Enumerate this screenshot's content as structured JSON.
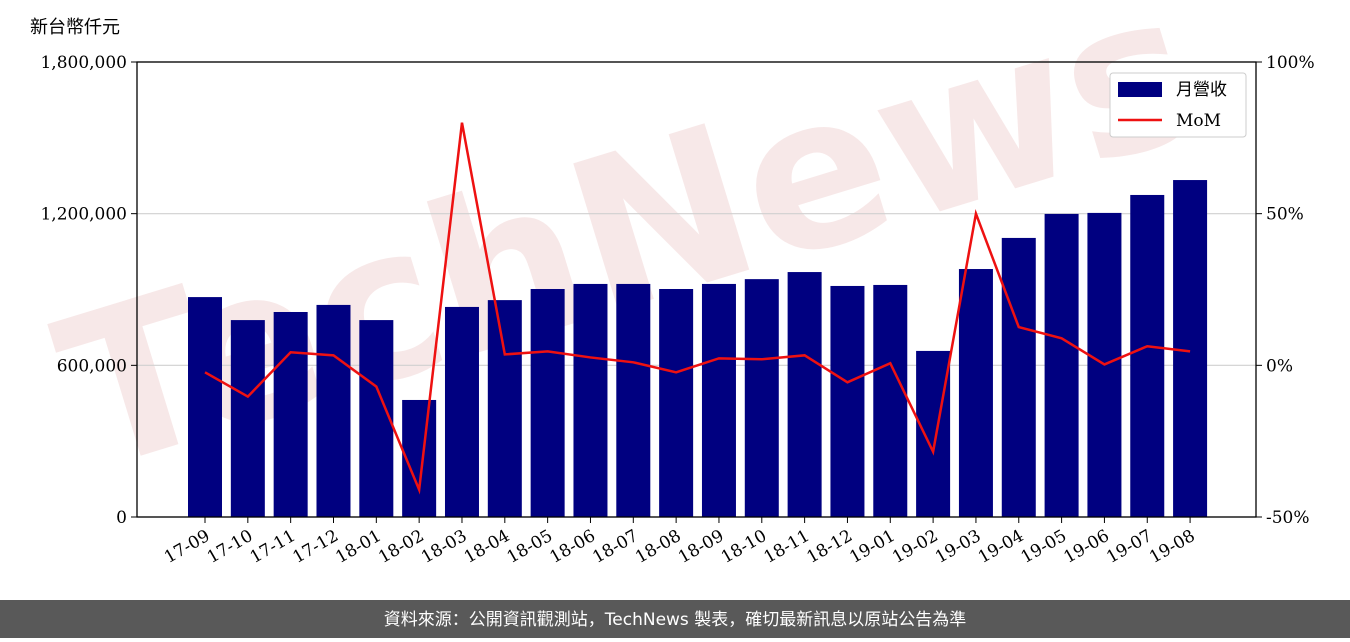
{
  "chart_data": {
    "type": "bar_line",
    "y_label": "新台幣仟元",
    "watermark": "TechNews",
    "source": "資料來源：公開資訊觀測站，TechNews 製表，確切最新訊息以原站公告為準",
    "categories": [
      "17-09",
      "17-10",
      "17-11",
      "17-12",
      "18-01",
      "18-02",
      "18-03",
      "18-04",
      "18-05",
      "18-06",
      "18-07",
      "18-08",
      "18-09",
      "18-10",
      "18-11",
      "18-12",
      "19-01",
      "19-02",
      "19-03",
      "19-04",
      "19-05",
      "19-06",
      "19-07",
      "19-08"
    ],
    "series": [
      {
        "name": "月營收",
        "type": "bar",
        "color": "#000080",
        "values": [
          870000,
          779000,
          811000,
          839000,
          779000,
          463000,
          831000,
          858000,
          902000,
          922000,
          922000,
          902000,
          922000,
          941000,
          969000,
          914000,
          918000,
          657000,
          981000,
          1104000,
          1199000,
          1203000,
          1274000,
          1333000
        ]
      },
      {
        "name": "MoM",
        "type": "line",
        "axis": "y2",
        "color": "#ee1111",
        "values": [
          -2.3,
          -10.3,
          4.3,
          3.3,
          -7,
          -41,
          80,
          3.6,
          4.6,
          2.6,
          1,
          -2.3,
          2.3,
          2,
          3.3,
          -5.6,
          0.7,
          -28.5,
          50,
          12.6,
          8.9,
          0.3,
          6.3,
          4.6
        ]
      }
    ],
    "ylim": [
      0,
      1800000
    ],
    "yticks": [
      0,
      {
        "value": 600000,
        "label": "600,000"
      },
      {
        "value": 1200000,
        "label": "1,200,000"
      },
      {
        "value": 1800000,
        "label": "1,800,000"
      }
    ],
    "y2lim": [
      -50,
      100
    ],
    "y2ticks": [
      {
        "value": -50,
        "label": "-50%"
      },
      {
        "value": 0,
        "label": "0%"
      },
      {
        "value": 50,
        "label": "50%"
      },
      {
        "value": 100,
        "label": "100%"
      }
    ],
    "grid": true,
    "legend": "upper right"
  }
}
